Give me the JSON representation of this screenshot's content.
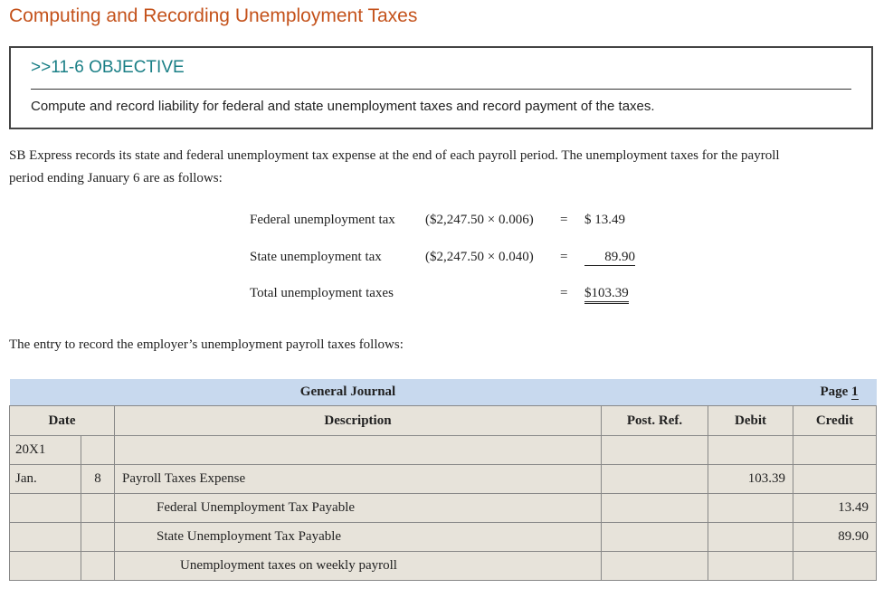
{
  "title": "Computing and Recording Unemployment Taxes",
  "objective": {
    "heading": ">>11-6 OBJECTIVE",
    "text": "Compute and record liability for federal and state unemployment taxes and record payment of the taxes."
  },
  "intro_lines": [
    "SB Express records its state and federal unemployment tax expense at the end of each payroll period. The unemployment taxes for the payroll",
    "period ending January 6 are as follows:"
  ],
  "calculation": [
    {
      "label": "Federal unemployment tax",
      "formula": "($2,247.50 × 0.006)",
      "eq": "=",
      "amount": "$ 13.49"
    },
    {
      "label": "State unemployment tax",
      "formula": "($2,247.50 × 0.040)",
      "eq": "=",
      "amount": "89.90"
    },
    {
      "label": "Total unemployment taxes",
      "formula": "",
      "eq": "=",
      "amount": "$103.39"
    }
  ],
  "entry_intro": "The entry to record the employer’s unemployment payroll taxes follows:",
  "journal": {
    "title": "General Journal",
    "page_label": "Page",
    "page_number": "1",
    "columns": {
      "date": "Date",
      "description": "Description",
      "post_ref": "Post. Ref.",
      "debit": "Debit",
      "credit": "Credit"
    },
    "rows": [
      {
        "date_a": "20X1",
        "date_b": "",
        "description": "",
        "post_ref": "",
        "debit": "",
        "credit": ""
      },
      {
        "date_a": "Jan.",
        "date_b": "8",
        "description": "Payroll Taxes Expense",
        "post_ref": "",
        "debit": "103.39",
        "credit": ""
      },
      {
        "date_a": "",
        "date_b": "",
        "description": "Federal Unemployment Tax Payable",
        "post_ref": "",
        "debit": "",
        "credit": "13.49"
      },
      {
        "date_a": "",
        "date_b": "",
        "description": "State Unemployment Tax Payable",
        "post_ref": "",
        "debit": "",
        "credit": "89.90"
      },
      {
        "date_a": "",
        "date_b": "",
        "description": "Unemployment taxes on weekly payroll",
        "post_ref": "",
        "debit": "",
        "credit": ""
      }
    ]
  }
}
